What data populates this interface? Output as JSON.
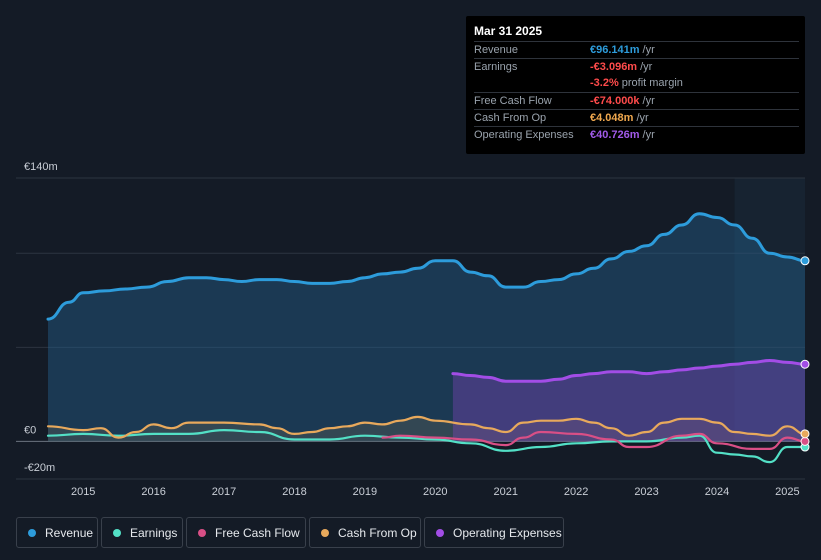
{
  "tooltip": {
    "date": "Mar 31 2025",
    "rows": [
      {
        "label": "Revenue",
        "value": "€96.141m",
        "unit": "/yr",
        "color": "#2d9cdb"
      },
      {
        "label": "Earnings",
        "value": "-€3.096m",
        "unit": "/yr",
        "color": "#ff4b4b"
      },
      {
        "label": "",
        "value": "-3.2%",
        "unit": "profit margin",
        "color": "#ff4b4b"
      },
      {
        "label": "Free Cash Flow",
        "value": "-€74.000k",
        "unit": "/yr",
        "color": "#ff4b4b"
      },
      {
        "label": "Cash From Op",
        "value": "€4.048m",
        "unit": "/yr",
        "color": "#f0a84e"
      },
      {
        "label": "Operating Expenses",
        "value": "€40.726m",
        "unit": "/yr",
        "color": "#a05ae8"
      }
    ]
  },
  "legend": [
    {
      "label": "Revenue",
      "color": "#2d9cdb"
    },
    {
      "label": "Earnings",
      "color": "#53e0c6"
    },
    {
      "label": "Free Cash Flow",
      "color": "#d94f86"
    },
    {
      "label": "Cash From Op",
      "color": "#e8a95c"
    },
    {
      "label": "Operating Expenses",
      "color": "#a24de6"
    }
  ],
  "chart_data": {
    "type": "area",
    "title": "",
    "xlabel": "",
    "ylabel": "",
    "ylim": [
      -20,
      140
    ],
    "y_tick_labels": [
      "€140m",
      "€0",
      "-€20m"
    ],
    "x_tick_labels": [
      "2015",
      "2016",
      "2017",
      "2018",
      "2019",
      "2020",
      "2021",
      "2022",
      "2023",
      "2024",
      "2025"
    ],
    "x_ticks": [
      2015,
      2016,
      2017,
      2018,
      2019,
      2020,
      2021,
      2022,
      2023,
      2024,
      2025
    ],
    "xlim": [
      2014.5,
      2025.25
    ],
    "forecast_start": 2024.25,
    "series": [
      {
        "name": "Revenue",
        "color": "#2d9cdb",
        "fill": true,
        "x": [
          2014.5,
          2014.8,
          2015.0,
          2015.3,
          2015.6,
          2015.9,
          2016.2,
          2016.5,
          2016.75,
          2017.0,
          2017.25,
          2017.5,
          2017.75,
          2018.0,
          2018.25,
          2018.5,
          2018.75,
          2019.0,
          2019.25,
          2019.5,
          2019.75,
          2020.0,
          2020.25,
          2020.5,
          2020.75,
          2021.0,
          2021.25,
          2021.5,
          2021.75,
          2022.0,
          2022.25,
          2022.5,
          2022.75,
          2023.0,
          2023.25,
          2023.5,
          2023.75,
          2024.0,
          2024.25,
          2024.5,
          2024.75,
          2025.0,
          2025.25
        ],
        "values": [
          65,
          74,
          79,
          80,
          81,
          82,
          85,
          87,
          87,
          86,
          85,
          86,
          86,
          85,
          84,
          84,
          85,
          87,
          89,
          90,
          92,
          96,
          96,
          90,
          88,
          82,
          82,
          85,
          86,
          89,
          92,
          97,
          101,
          104,
          110,
          115,
          121,
          119,
          115,
          108,
          100,
          98,
          96
        ]
      },
      {
        "name": "Earnings",
        "color": "#53e0c6",
        "fill": false,
        "x": [
          2014.5,
          2015.0,
          2015.5,
          2016.0,
          2016.5,
          2017.0,
          2017.5,
          2018.0,
          2018.5,
          2019.0,
          2019.5,
          2020.0,
          2020.5,
          2021.0,
          2021.5,
          2022.0,
          2022.5,
          2023.0,
          2023.5,
          2023.75,
          2024.0,
          2024.25,
          2024.5,
          2024.75,
          2025.0,
          2025.25
        ],
        "values": [
          3,
          4,
          3,
          4,
          4,
          6,
          5,
          1,
          1,
          3,
          2,
          1,
          -1,
          -5,
          -3,
          -1,
          0,
          0,
          2,
          3,
          -6,
          -7,
          -8,
          -11,
          -3,
          -3
        ]
      },
      {
        "name": "Free Cash Flow",
        "color": "#d94f86",
        "fill": false,
        "x": [
          2019.25,
          2019.5,
          2020.0,
          2020.5,
          2021.0,
          2021.25,
          2021.5,
          2022.0,
          2022.5,
          2022.75,
          2023.0,
          2023.5,
          2023.75,
          2024.0,
          2024.5,
          2024.75,
          2025.0,
          2025.25
        ],
        "values": [
          2,
          3,
          2,
          1,
          -2,
          2,
          5,
          4,
          1,
          -3,
          -3,
          3,
          4,
          -1,
          -4,
          -4,
          2,
          0
        ]
      },
      {
        "name": "Cash From Op",
        "color": "#e8a95c",
        "fill": true,
        "x": [
          2014.5,
          2015.0,
          2015.25,
          2015.5,
          2015.75,
          2016.0,
          2016.25,
          2016.5,
          2017.0,
          2017.5,
          2017.75,
          2018.0,
          2018.25,
          2018.5,
          2018.75,
          2019.0,
          2019.25,
          2019.5,
          2019.75,
          2020.0,
          2020.5,
          2020.75,
          2021.0,
          2021.25,
          2021.5,
          2021.75,
          2022.0,
          2022.25,
          2022.5,
          2022.75,
          2023.0,
          2023.25,
          2023.5,
          2023.75,
          2024.0,
          2024.25,
          2024.5,
          2024.75,
          2025.0,
          2025.25
        ],
        "values": [
          8,
          6,
          7,
          2,
          5,
          9,
          7,
          10,
          10,
          9,
          7,
          4,
          5,
          7,
          8,
          10,
          9,
          11,
          13,
          11,
          9,
          7,
          5,
          10,
          11,
          11,
          12,
          10,
          7,
          3,
          5,
          10,
          12,
          12,
          10,
          5,
          4,
          3,
          8,
          4
        ]
      },
      {
        "name": "Operating Expenses",
        "color": "#a24de6",
        "fill": true,
        "x": [
          2020.25,
          2020.5,
          2020.75,
          2021.0,
          2021.25,
          2021.5,
          2021.75,
          2022.0,
          2022.25,
          2022.5,
          2022.75,
          2023.0,
          2023.25,
          2023.5,
          2023.75,
          2024.0,
          2024.25,
          2024.5,
          2024.75,
          2025.0,
          2025.25
        ],
        "values": [
          36,
          35,
          34,
          32,
          32,
          32,
          33,
          35,
          36,
          37,
          37,
          36,
          37,
          38,
          39,
          40,
          41,
          42,
          43,
          42,
          41
        ]
      }
    ]
  }
}
